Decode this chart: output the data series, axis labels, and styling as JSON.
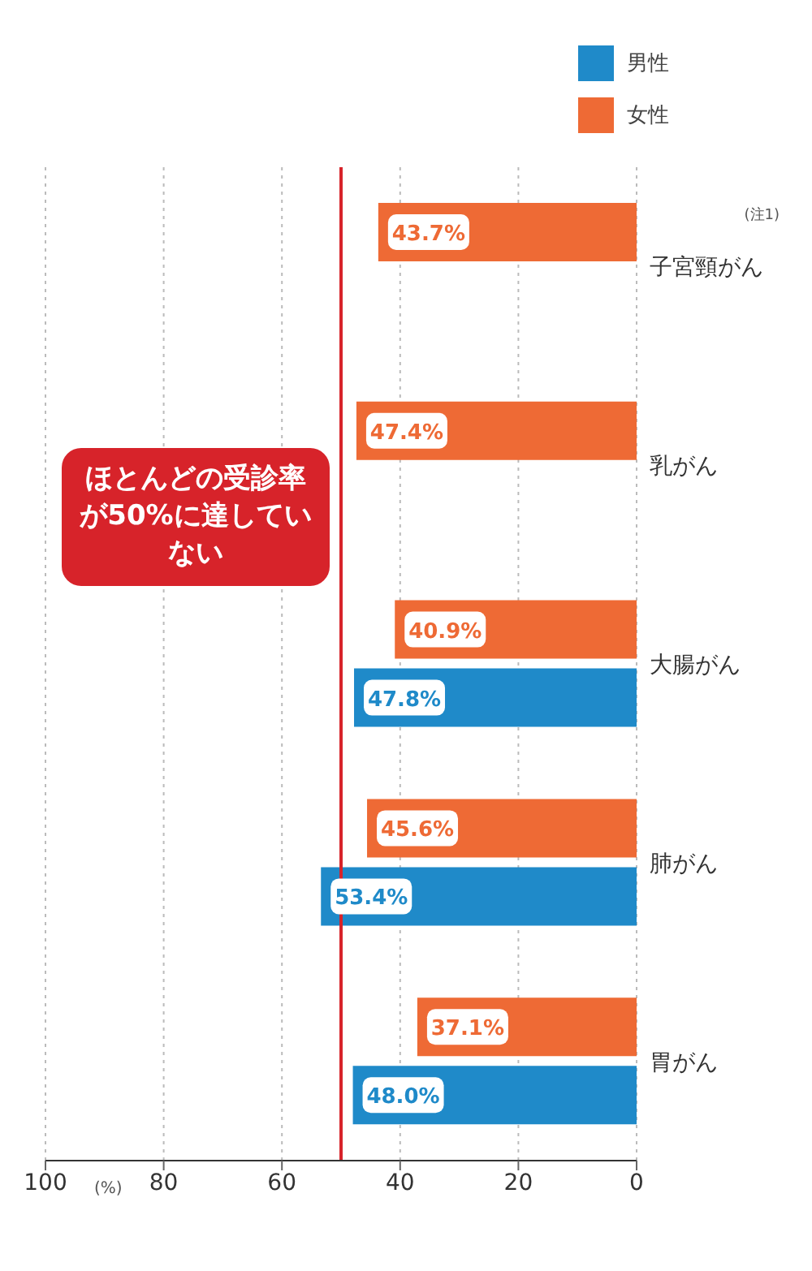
{
  "chart_data": {
    "type": "bar",
    "orientation": "horizontal",
    "xlabel": "(%)",
    "categories": [
      "子宮頸がん",
      "乳がん",
      "大腸がん",
      "肺がん",
      "胃がん"
    ],
    "series": [
      {
        "name": "男性",
        "color": "#1f8ac9",
        "values": [
          null,
          null,
          47.8,
          53.4,
          48.0
        ],
        "value_labels": [
          null,
          null,
          "47.8%",
          "53.4%",
          "48.0%"
        ]
      },
      {
        "name": "女性",
        "color": "#ee6a35",
        "values": [
          43.7,
          47.4,
          40.9,
          45.6,
          37.1
        ],
        "value_labels": [
          "43.7%",
          "47.4%",
          "40.9%",
          "45.6%",
          "37.1%"
        ]
      }
    ],
    "xlim": [
      100,
      0
    ],
    "xticks": [
      0,
      20,
      40,
      60,
      80,
      100
    ],
    "grid": "x",
    "legend": "top right",
    "ref_lines": [
      {
        "axis": "x",
        "value": 50,
        "color": "#d7232a"
      }
    ],
    "annotations": [
      "ほとんどの受診率が50%に達していない",
      "(注1)"
    ]
  }
}
